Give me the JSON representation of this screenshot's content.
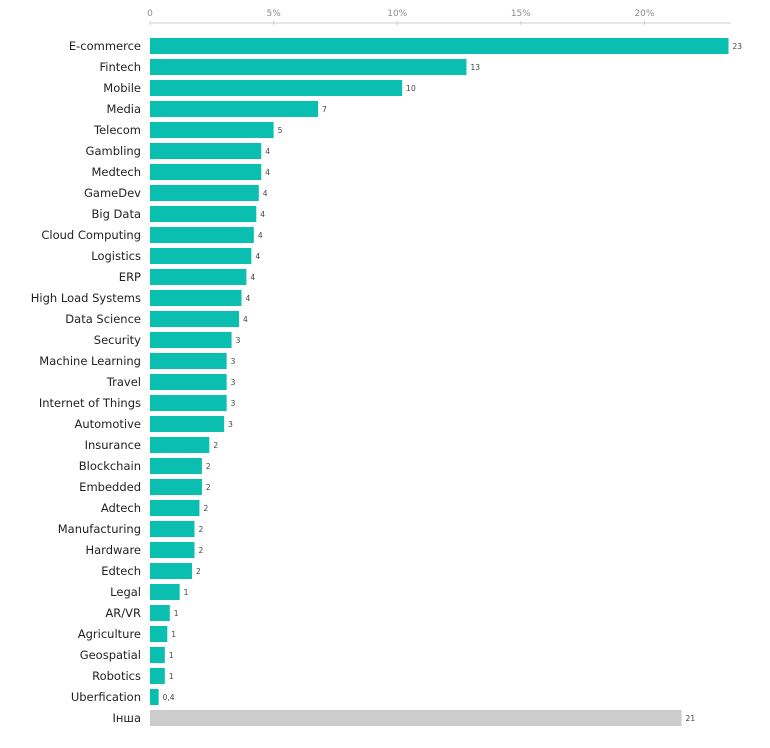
{
  "chart_data": {
    "type": "bar",
    "orientation": "horizontal",
    "xlim": [
      0,
      23.5
    ],
    "x_ticks": [
      {
        "value": 0,
        "label": "0"
      },
      {
        "value": 5,
        "label": "5%"
      },
      {
        "value": 10,
        "label": "10%"
      },
      {
        "value": 15,
        "label": "15%"
      },
      {
        "value": 20,
        "label": "20%"
      }
    ],
    "grid": false,
    "colors": {
      "primary": "#0ABFB0",
      "other": "#CCCCCC"
    },
    "bars": [
      {
        "category": "E-commerce",
        "value": 23.4,
        "label": "23"
      },
      {
        "category": "Fintech",
        "value": 12.8,
        "label": "13"
      },
      {
        "category": "Mobile",
        "value": 10.2,
        "label": "10"
      },
      {
        "category": "Media",
        "value": 6.8,
        "label": "7"
      },
      {
        "category": "Telecom",
        "value": 5.0,
        "label": "5"
      },
      {
        "category": "Gambling",
        "value": 4.5,
        "label": "4"
      },
      {
        "category": "Medtech",
        "value": 4.5,
        "label": "4"
      },
      {
        "category": "GameDev",
        "value": 4.4,
        "label": "4"
      },
      {
        "category": "Big Data",
        "value": 4.3,
        "label": "4"
      },
      {
        "category": "Cloud Computing",
        "value": 4.2,
        "label": "4"
      },
      {
        "category": "Logistics",
        "value": 4.1,
        "label": "4"
      },
      {
        "category": "ERP",
        "value": 3.9,
        "label": "4"
      },
      {
        "category": "High Load Systems",
        "value": 3.7,
        "label": "4"
      },
      {
        "category": "Data Science",
        "value": 3.6,
        "label": "4"
      },
      {
        "category": "Security",
        "value": 3.3,
        "label": "3"
      },
      {
        "category": "Machine Learning",
        "value": 3.1,
        "label": "3"
      },
      {
        "category": "Travel",
        "value": 3.1,
        "label": "3"
      },
      {
        "category": "Internet of Things",
        "value": 3.1,
        "label": "3"
      },
      {
        "category": "Automotive",
        "value": 3.0,
        "label": "3"
      },
      {
        "category": "Insurance",
        "value": 2.4,
        "label": "2"
      },
      {
        "category": "Blockchain",
        "value": 2.1,
        "label": "2"
      },
      {
        "category": "Embedded",
        "value": 2.1,
        "label": "2"
      },
      {
        "category": "Adtech",
        "value": 2.0,
        "label": "2"
      },
      {
        "category": "Manufacturing",
        "value": 1.8,
        "label": "2"
      },
      {
        "category": "Hardware",
        "value": 1.8,
        "label": "2"
      },
      {
        "category": "Edtech",
        "value": 1.7,
        "label": "2"
      },
      {
        "category": "Legal",
        "value": 1.2,
        "label": "1"
      },
      {
        "category": "AR/VR",
        "value": 0.8,
        "label": "1"
      },
      {
        "category": "Agriculture",
        "value": 0.7,
        "label": "1"
      },
      {
        "category": "Geospatial",
        "value": 0.6,
        "label": "1"
      },
      {
        "category": "Robotics",
        "value": 0.6,
        "label": "1"
      },
      {
        "category": "Uberfication",
        "value": 0.35,
        "label": "0,4"
      },
      {
        "category": "Інша",
        "value": 21.5,
        "label": "21",
        "color": "#CCCCCC"
      }
    ]
  }
}
